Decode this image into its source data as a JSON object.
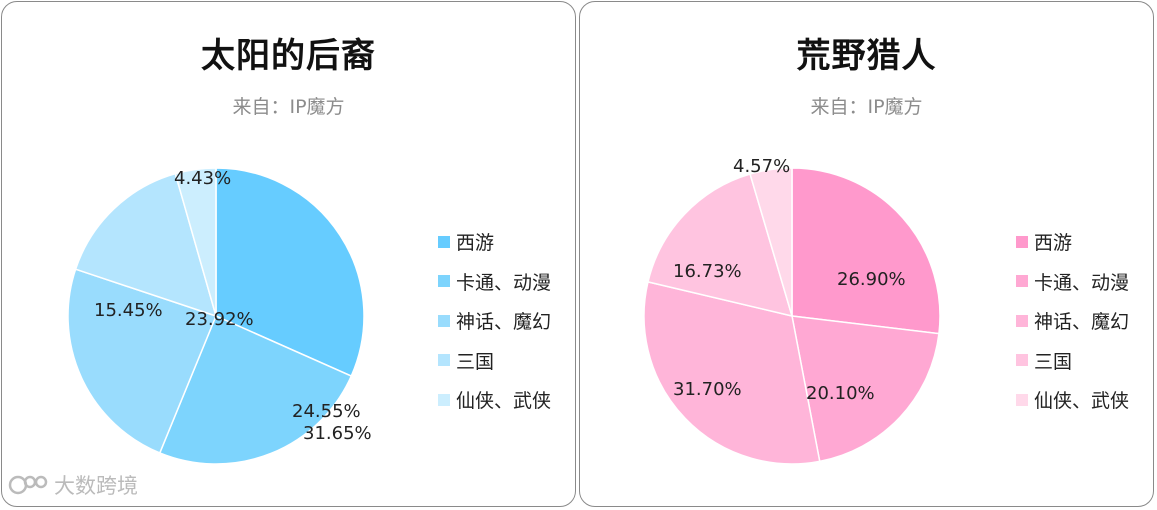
{
  "chart_data": [
    {
      "type": "pie",
      "title": "太阳的后裔",
      "subtitle": "来自：IP魔方",
      "categories": [
        "西游",
        "卡通、动漫",
        "神话、魔幻",
        "三国",
        "仙侠、武侠"
      ],
      "values": [
        31.65,
        24.55,
        23.92,
        15.45,
        4.43
      ],
      "labels": [
        "31.65%",
        "24.55%",
        "23.92%",
        "15.45%",
        "4.43%"
      ],
      "colors": [
        "#66CCFF",
        "#7DD4FD",
        "#99DCFD",
        "#B4E5FE",
        "#CCEEFE"
      ],
      "legend_position": "right"
    },
    {
      "type": "pie",
      "title": "荒野猎人",
      "subtitle": "来自：IP魔方",
      "categories": [
        "西游",
        "卡通、动漫",
        "神话、魔幻",
        "三国",
        "仙侠、武侠"
      ],
      "values": [
        26.9,
        20.1,
        31.7,
        16.73,
        4.57
      ],
      "labels": [
        "26.90%",
        "20.10%",
        "31.70%",
        "16.73%",
        "4.57%"
      ],
      "colors": [
        "#FF99CC",
        "#FFA8D3",
        "#FFB5D9",
        "#FFC4E0",
        "#FFD9EA"
      ],
      "legend_position": "right"
    }
  ],
  "watermark": {
    "text": "大数跨境",
    "icon": "logo-icon"
  }
}
